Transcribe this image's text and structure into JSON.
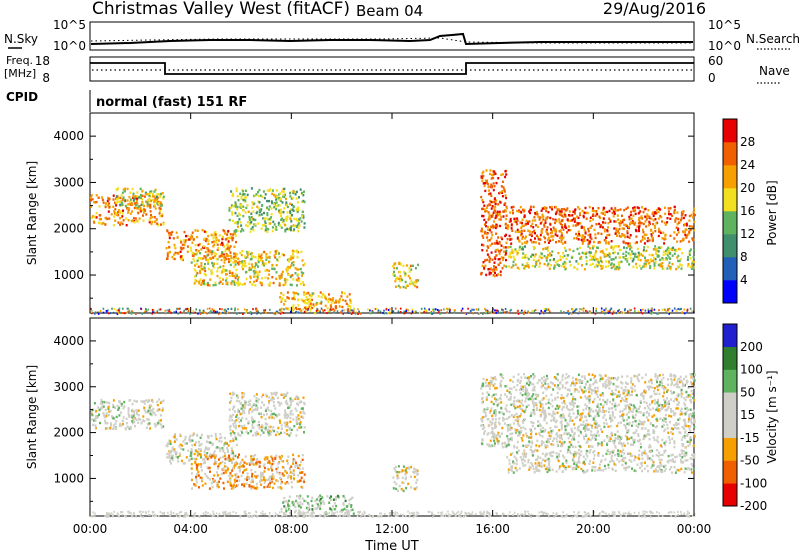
{
  "header": {
    "station": "Christmas Valley West (fitACF)",
    "beam": "Beam 04",
    "date": "29/Aug/2016"
  },
  "top_panels": {
    "nsky_label": "N.Sky",
    "nsearch_label": "N.Search",
    "nsky_ticks": [
      "10^5",
      "10^0"
    ],
    "nsearch_ticks": [
      "10^5",
      "10^0"
    ],
    "freq_label": [
      "Freq.",
      "[MHz]"
    ],
    "freq_ticks": [
      "18",
      "8"
    ],
    "nave_label": "Nave",
    "nave_ticks": [
      "60",
      "0"
    ],
    "cpid_label": "CPID",
    "cpid_text": "normal (fast) 151 RF"
  },
  "colors": {
    "power": [
      "#0000ff",
      "#2060b8",
      "#3f8f6f",
      "#5fb35f",
      "#f2e020",
      "#f5a000",
      "#f06000",
      "#e60000"
    ],
    "velocity": [
      "#e60000",
      "#f06000",
      "#f5a000",
      "#cfcfc7",
      "#cfcfc7",
      "#5fb35f",
      "#2f7f2f",
      "#2020d0"
    ],
    "panel_bg": "#ffffff"
  },
  "chart_data": [
    {
      "type": "heatmap",
      "title": "",
      "xlabel": "",
      "ylabel": "Slant Range [km]",
      "xlim": [
        0,
        24
      ],
      "ylim": [
        180,
        4500
      ],
      "x_tick_labels": [
        "00:00",
        "04:00",
        "08:00",
        "12:00",
        "16:00",
        "20:00",
        "00:00"
      ],
      "y_ticks": [
        1000,
        2000,
        3000,
        4000
      ],
      "colorbar": {
        "label": "Power [dB]",
        "ticks": [
          "4",
          "8",
          "12",
          "16",
          "20",
          "24",
          "28"
        ],
        "range": [
          0,
          30
        ]
      },
      "echo_regions": [
        {
          "t0": 0.0,
          "t1": 2.9,
          "r0": 2100,
          "r1": 2750,
          "power": 22
        },
        {
          "t0": 1.0,
          "t1": 2.9,
          "r0": 2500,
          "r1": 2900,
          "power": 16
        },
        {
          "t0": 3.0,
          "t1": 5.8,
          "r0": 1350,
          "r1": 2000,
          "power": 22
        },
        {
          "t0": 5.5,
          "t1": 8.5,
          "r0": 1950,
          "r1": 2900,
          "power": 14
        },
        {
          "t0": 4.0,
          "t1": 8.5,
          "r0": 800,
          "r1": 1550,
          "power": 18
        },
        {
          "t0": 7.5,
          "t1": 10.5,
          "r0": 250,
          "r1": 650,
          "power": 20
        },
        {
          "t0": 12.0,
          "t1": 13.0,
          "r0": 750,
          "r1": 1300,
          "power": 18
        },
        {
          "t0": 15.5,
          "t1": 16.5,
          "r0": 1000,
          "r1": 3300,
          "power": 24
        },
        {
          "t0": 16.5,
          "t1": 24.0,
          "r0": 1700,
          "r1": 2500,
          "power": 24
        },
        {
          "t0": 16.5,
          "t1": 24.0,
          "r0": 1150,
          "r1": 1650,
          "power": 16
        }
      ]
    },
    {
      "type": "heatmap",
      "title": "",
      "xlabel": "Time UT",
      "ylabel": "Slant Range [km]",
      "xlim": [
        0,
        24
      ],
      "ylim": [
        180,
        4500
      ],
      "x_tick_labels": [
        "00:00",
        "04:00",
        "08:00",
        "12:00",
        "16:00",
        "20:00",
        "00:00"
      ],
      "y_ticks": [
        1000,
        2000,
        3000,
        4000
      ],
      "colorbar": {
        "label": "Velocity [m s^-1]",
        "ticks": [
          "200",
          "100",
          "50",
          "15",
          "-15",
          "-50",
          "-100",
          "-200"
        ],
        "range": [
          -200,
          200
        ]
      },
      "echo_regions": [
        {
          "t0": 0.0,
          "t1": 2.9,
          "r0": 2100,
          "r1": 2750,
          "velocity": 0
        },
        {
          "t0": 3.0,
          "t1": 5.8,
          "r0": 1350,
          "r1": 2000,
          "velocity": 0
        },
        {
          "t0": 5.5,
          "t1": 8.5,
          "r0": 1950,
          "r1": 2900,
          "velocity": 0
        },
        {
          "t0": 4.0,
          "t1": 8.5,
          "r0": 800,
          "r1": 1550,
          "velocity": -60
        },
        {
          "t0": 7.5,
          "t1": 10.5,
          "r0": 250,
          "r1": 650,
          "velocity": 40
        },
        {
          "t0": 12.0,
          "t1": 13.0,
          "r0": 750,
          "r1": 1300,
          "velocity": 0
        },
        {
          "t0": 15.5,
          "t1": 24.0,
          "r0": 1700,
          "r1": 3300,
          "velocity": 0
        },
        {
          "t0": 16.5,
          "t1": 24.0,
          "r0": 1150,
          "r1": 1650,
          "velocity": 0
        }
      ]
    }
  ]
}
